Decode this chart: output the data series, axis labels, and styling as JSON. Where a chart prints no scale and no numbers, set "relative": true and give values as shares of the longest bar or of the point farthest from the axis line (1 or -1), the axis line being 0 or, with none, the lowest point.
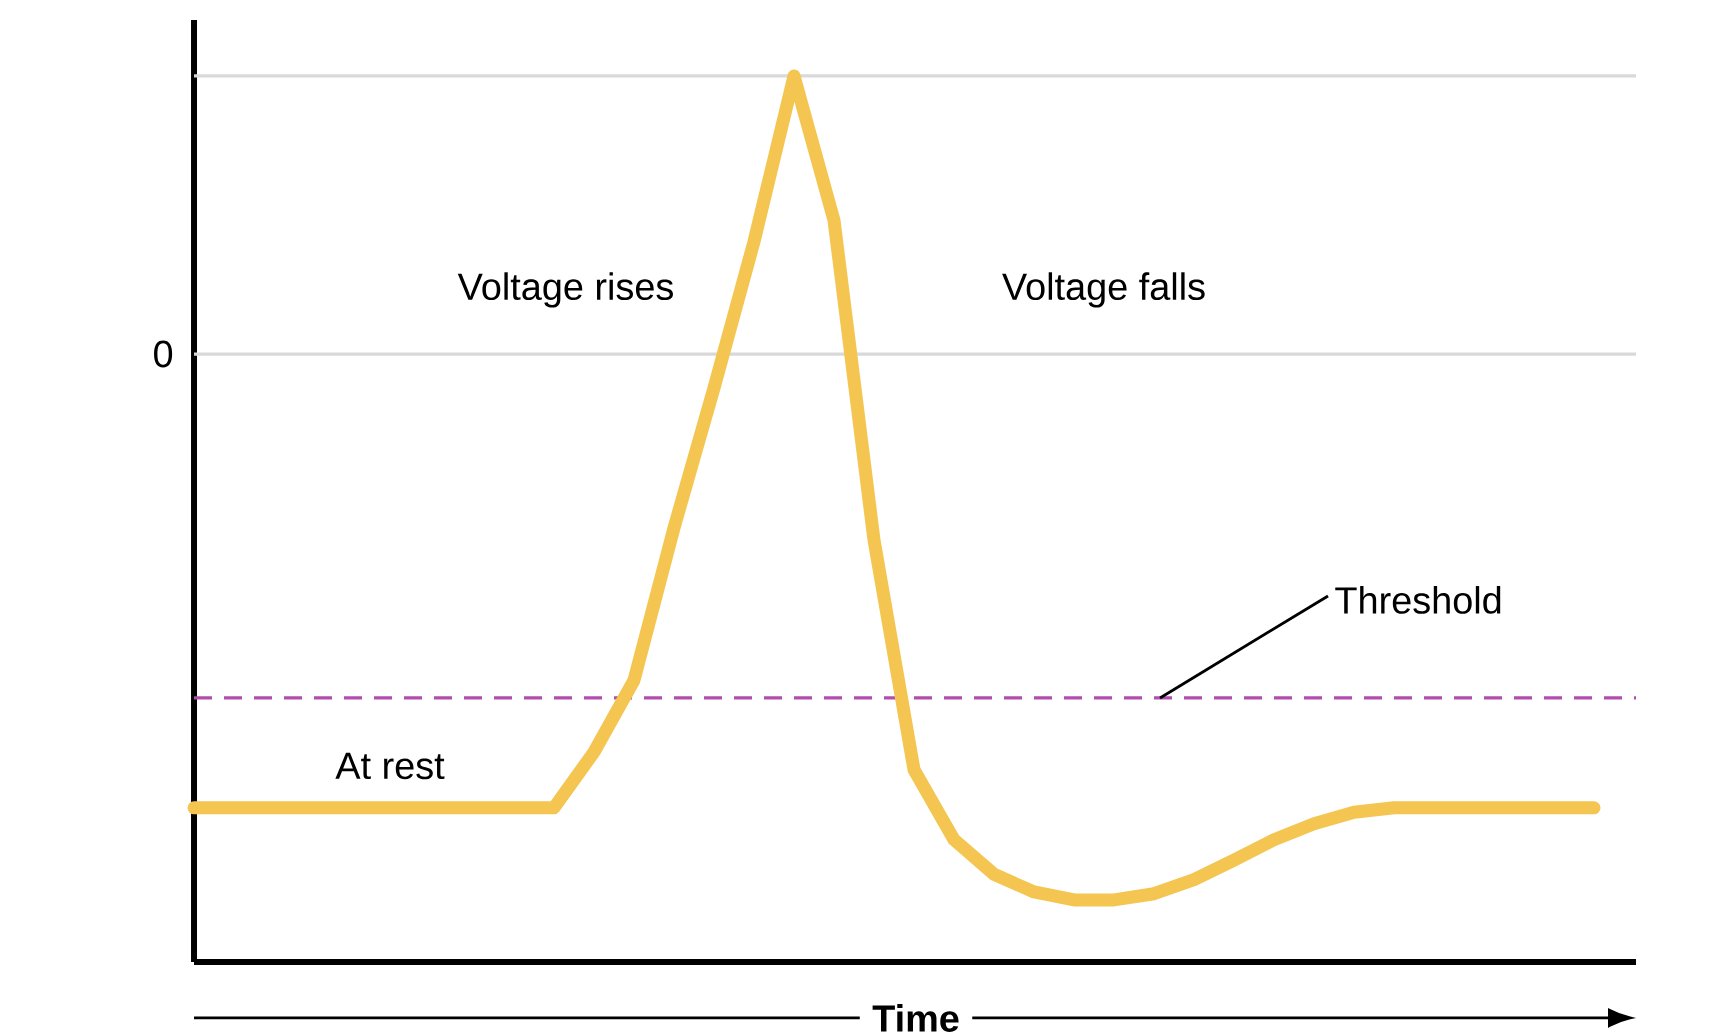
{
  "chart_data": {
    "type": "line",
    "xlabel": "Time",
    "relative": true,
    "marker": "none",
    "line_style": "solid",
    "categories": [
      null,
      null,
      null,
      null,
      null,
      null,
      null,
      null,
      null,
      null,
      null,
      null,
      null,
      null,
      null,
      null,
      null,
      null,
      null,
      null,
      null,
      null,
      null,
      null,
      null,
      null,
      null,
      null,
      null,
      null,
      null,
      null,
      null,
      null,
      null,
      null
    ],
    "series": [
      {
        "color": "#f4c550",
        "values": [
          0.174,
          0.174,
          0.174,
          0.174,
          0.174,
          0.174,
          0.174,
          0.174,
          0.174,
          0.174,
          0.237,
          0.318,
          0.49,
          0.648,
          0.813,
          1.0,
          0.837,
          0.476,
          0.217,
          0.138,
          0.099,
          0.079,
          0.07,
          0.07,
          0.077,
          0.093,
          0.115,
          0.138,
          0.156,
          0.169,
          0.174,
          0.174,
          0.174,
          0.174,
          0.174,
          0.174
        ]
      }
    ],
    "ref_lines": [
      {
        "axis": "y",
        "value": 1,
        "color": "#d9d9d9"
      },
      {
        "axis": "y",
        "value": 0.686,
        "color": "#d9d9d9"
      },
      {
        "axis": "y",
        "value": 0.298,
        "label": "Threshold",
        "color": "#b24db0",
        "line_style": "dashed"
      }
    ],
    "annotations": [
      "Voltage rises",
      "Voltage falls",
      "At rest",
      "0"
    ]
  }
}
